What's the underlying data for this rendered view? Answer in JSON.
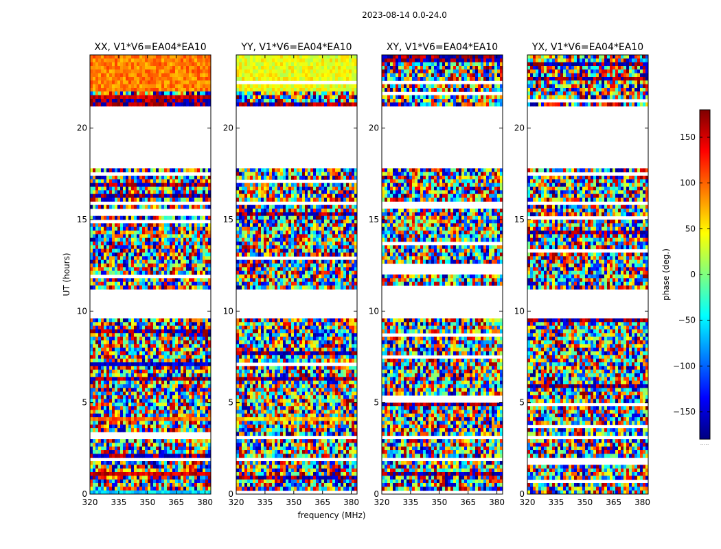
{
  "figure": {
    "suptitle": "2023-08-14 0.0-24.0",
    "xlabel": "frequency (MHz)",
    "ylabel": "UT (hours)",
    "colorbar_label": "phase (deg.)",
    "colorbar_footer": ".....",
    "colormap": [
      "#00007f",
      "#0000ff",
      "#007fff",
      "#00ffff",
      "#7fff7f",
      "#ffff00",
      "#ff7f00",
      "#ff0000",
      "#7f0000"
    ]
  },
  "chart_data": [
    {
      "type": "heatmap",
      "title": "XX, V1*V6=EA04*EA10",
      "xlabel": "frequency (MHz)",
      "ylabel": "UT (hours)",
      "xlim": [
        320,
        383
      ],
      "ylim": [
        0,
        24
      ],
      "xticks": [
        320,
        335,
        350,
        365,
        380
      ],
      "yticks": [
        0,
        5,
        10,
        15,
        20
      ],
      "z": "phase (deg.)",
      "zlim": [
        -180,
        180
      ],
      "flagged_ut_ranges": [
        [
          9.6,
          11.2
        ],
        [
          17.9,
          19.5
        ],
        [
          19.7,
          21.1
        ],
        [
          15.9,
          16.0
        ],
        [
          3.1,
          3.3
        ],
        [
          1.8,
          2.0
        ]
      ],
      "coherent_bands": [
        {
          "ut": [
            21.1,
            21.4
          ],
          "phase": -150
        },
        {
          "ut": [
            21.5,
            21.7
          ],
          "phase": 150
        },
        {
          "ut": [
            22.0,
            23.9
          ],
          "phase": 90
        },
        {
          "ut": [
            7.0,
            7.2
          ],
          "phase": -150
        },
        {
          "ut": [
            4.1,
            4.3
          ],
          "phase": 100
        },
        {
          "ut": [
            1.0,
            1.2
          ],
          "phase": 150
        },
        {
          "ut": [
            0.1,
            0.3
          ],
          "phase": -60
        }
      ]
    },
    {
      "type": "heatmap",
      "title": "YY, V1*V6=EA04*EA10",
      "xlabel": "frequency (MHz)",
      "ylabel": "",
      "xlim": [
        320,
        383
      ],
      "ylim": [
        0,
        24
      ],
      "xticks": [
        320,
        335,
        350,
        365,
        380
      ],
      "yticks": [
        0,
        5,
        10,
        15,
        20
      ],
      "z": "phase (deg.)",
      "zlim": [
        -180,
        180
      ],
      "flagged_ut_ranges": [
        [
          9.6,
          11.2
        ],
        [
          17.9,
          19.5
        ],
        [
          19.7,
          21.1
        ],
        [
          15.9,
          16.0
        ],
        [
          3.1,
          3.3
        ],
        [
          1.8,
          2.0
        ]
      ],
      "coherent_bands": [
        {
          "ut": [
            21.1,
            21.4
          ],
          "phase": 150
        },
        {
          "ut": [
            22.0,
            23.9
          ],
          "phase": 40
        },
        {
          "ut": [
            7.0,
            7.3
          ],
          "phase": 150
        },
        {
          "ut": [
            4.1,
            4.3
          ],
          "phase": 60
        },
        {
          "ut": [
            0.1,
            0.3
          ],
          "phase": -150
        }
      ]
    },
    {
      "type": "heatmap",
      "title": "XY, V1*V6=EA04*EA10",
      "xlabel": "",
      "ylabel": "",
      "xlim": [
        320,
        383
      ],
      "ylim": [
        0,
        24
      ],
      "xticks": [
        320,
        335,
        350,
        365,
        380
      ],
      "yticks": [
        0,
        5,
        10,
        15,
        20
      ],
      "z": "phase (deg.)",
      "zlim": [
        -180,
        180
      ],
      "flagged_ut_ranges": [
        [
          9.6,
          11.2
        ],
        [
          17.9,
          19.5
        ],
        [
          19.7,
          21.1
        ],
        [
          15.9,
          16.0
        ],
        [
          3.1,
          3.3
        ],
        [
          1.8,
          2.0
        ]
      ],
      "coherent_bands": []
    },
    {
      "type": "heatmap",
      "title": "YX, V1*V6=EA04*EA10",
      "xlabel": "",
      "ylabel": "",
      "xlim": [
        320,
        383
      ],
      "ylim": [
        0,
        24
      ],
      "xticks": [
        320,
        335,
        350,
        365,
        380
      ],
      "yticks": [
        0,
        5,
        10,
        15,
        20
      ],
      "z": "phase (deg.)",
      "zlim": [
        -180,
        180
      ],
      "flagged_ut_ranges": [
        [
          9.6,
          11.2
        ],
        [
          17.9,
          19.5
        ],
        [
          19.7,
          21.1
        ],
        [
          15.9,
          16.0
        ],
        [
          3.1,
          3.3
        ],
        [
          1.8,
          2.0
        ]
      ],
      "coherent_bands": []
    },
    {
      "type": "colorbar",
      "label": "phase (deg.)",
      "ylim": [
        -180,
        180
      ],
      "ticks": [
        -150,
        -100,
        -50,
        0,
        50,
        100,
        150
      ]
    }
  ]
}
